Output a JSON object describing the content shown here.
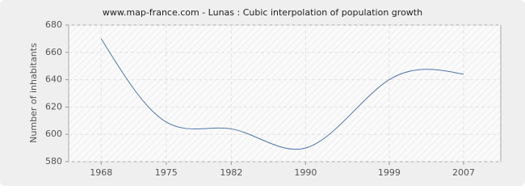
{
  "chart_data": {
    "type": "line",
    "title": "www.map-france.com - Lunas : Cubic interpolation of population growth",
    "y_label": "Number of inhabitants",
    "x": [
      1968,
      1975,
      1982,
      1990,
      1999,
      2007
    ],
    "series": [
      {
        "name": "Lunas",
        "color": "#4f77a8",
        "values": [
          670,
          609,
          604,
          590,
          640,
          644
        ]
      }
    ],
    "xlim": [
      1964.5,
      2011
    ],
    "xticks": [
      1968,
      1975,
      1982,
      1990,
      1999,
      2007
    ],
    "ylim": [
      580,
      680
    ],
    "yticks": [
      580,
      600,
      620,
      640,
      660,
      680
    ],
    "grid": true,
    "interpolation": "cubic"
  }
}
